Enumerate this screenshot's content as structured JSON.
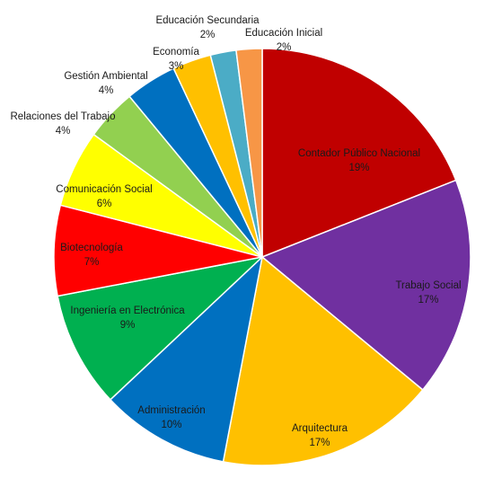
{
  "chart_data": {
    "type": "pie",
    "title": "",
    "slices": [
      {
        "label": "Contador Público Nacional",
        "value": 19,
        "value_label": "19%",
        "color": "#C00000"
      },
      {
        "label": "Trabajo Social",
        "value": 17,
        "value_label": "17%",
        "color": "#7030A0"
      },
      {
        "label": "Arquitectura",
        "value": 17,
        "value_label": "17%",
        "color": "#FFC000"
      },
      {
        "label": "Administración",
        "value": 10,
        "value_label": "10%",
        "color": "#0070C0"
      },
      {
        "label": "Ingeniería en Electrónica",
        "value": 9,
        "value_label": "9%",
        "color": "#00B050"
      },
      {
        "label": "Biotecnología",
        "value": 7,
        "value_label": "7%",
        "color": "#FF0000"
      },
      {
        "label": "Comunicación Social",
        "value": 6,
        "value_label": "6%",
        "color": "#FFFF00"
      },
      {
        "label": "Relaciones del Trabajo",
        "value": 4,
        "value_label": "4%",
        "color": "#92D050"
      },
      {
        "label": "Gestión Ambiental",
        "value": 4,
        "value_label": "4%",
        "color": "#0070C0"
      },
      {
        "label": "Economía",
        "value": 3,
        "value_label": "3%",
        "color": "#FFC000"
      },
      {
        "label": "Educación Secundaria",
        "value": 2,
        "value_label": "2%",
        "color": "#4BACC6"
      },
      {
        "label": "Educación Inicial",
        "value": 2,
        "value_label": "2%",
        "color": "#F79646"
      }
    ]
  }
}
